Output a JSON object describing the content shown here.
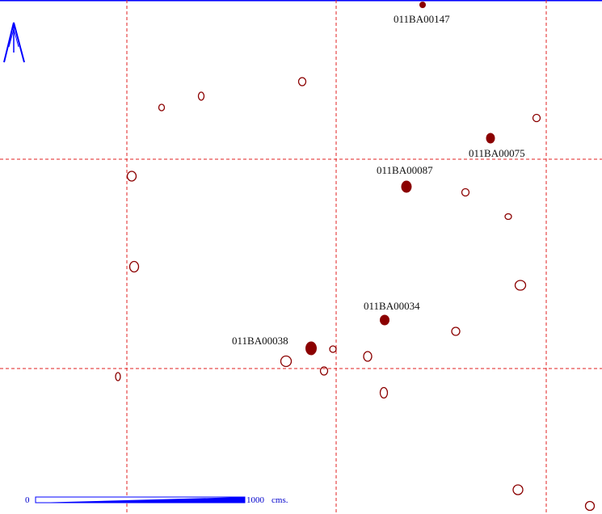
{
  "colors": {
    "frame": "#0000ff",
    "grid": "#e02020",
    "feature": "#8b0000",
    "north_arrow": "#0000ff",
    "scale_bar": "#0000ff",
    "label_text": "#111111"
  },
  "north_arrow": {
    "icon": "north-arrow-icon"
  },
  "labeled_features": [
    {
      "id": "011BA00147"
    },
    {
      "id": "011BA00075"
    },
    {
      "id": "011BA00087"
    },
    {
      "id": "011BA00034"
    },
    {
      "id": "011BA00038"
    }
  ],
  "scale_bar": {
    "start_label": "0",
    "end_label": "1000",
    "unit_label": "cms."
  }
}
